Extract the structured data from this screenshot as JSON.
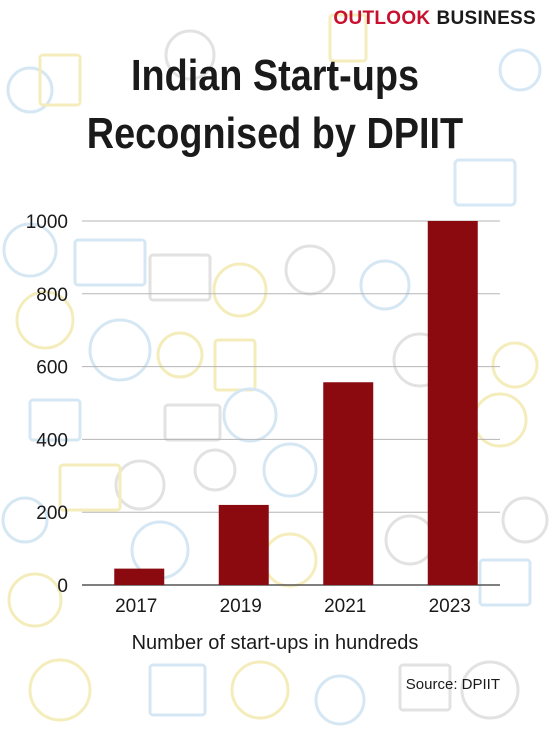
{
  "brand": {
    "part1": "OUTLOOK",
    "part2": "BUSINESS"
  },
  "title_line1": "Indian Start-ups",
  "title_line2": "Recognised by DPIIT",
  "caption": "Number of start-ups in hundreds",
  "source": "Source: DPIIT",
  "colors": {
    "bar": "#8b0a0f",
    "brand_red": "#c8102e",
    "grid": "#b5b5b5",
    "pattern_blue": "#cfe3f3",
    "pattern_yellow": "#f3eab0",
    "pattern_gray": "#dddddd"
  },
  "chart_data": {
    "type": "bar",
    "title": "Indian Start-ups Recognised by DPIIT",
    "xlabel": "Number of start-ups in hundreds",
    "ylabel": "",
    "categories": [
      "2017",
      "2019",
      "2021",
      "2023"
    ],
    "values": [
      45,
      220,
      557,
      1000
    ],
    "ylim": [
      0,
      1000
    ],
    "yticks": [
      "0",
      "200",
      "400",
      "600",
      "800",
      "1000"
    ],
    "grid": true,
    "legend": "none"
  }
}
